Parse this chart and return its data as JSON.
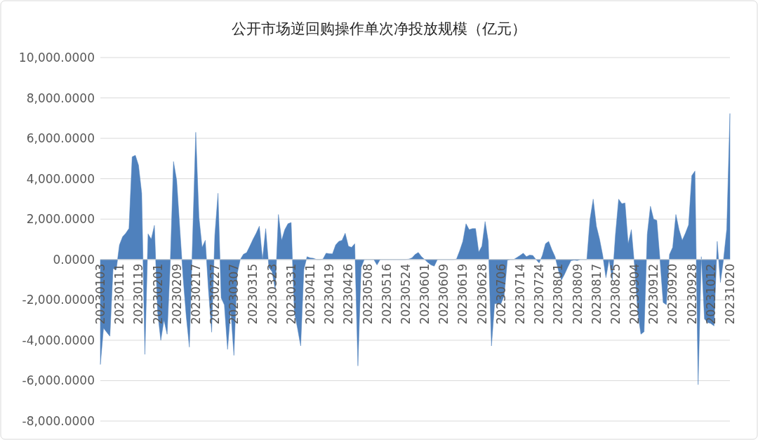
{
  "chart_data": {
    "type": "area",
    "title": "公开市场逆回购操作单次净投放规模（亿元）",
    "color": "#4f81bd",
    "grid": "y",
    "ylim": [
      -8000,
      10000
    ],
    "yticks": [
      {
        "value": -8000,
        "label": "-8,000.0000"
      },
      {
        "value": -6000,
        "label": "-6,000.0000"
      },
      {
        "value": -4000,
        "label": "-4,000.0000"
      },
      {
        "value": -2000,
        "label": "-2,000.0000"
      },
      {
        "value": 0,
        "label": "0.0000"
      },
      {
        "value": 2000,
        "label": "2,000.0000"
      },
      {
        "value": 4000,
        "label": "4,000.0000"
      },
      {
        "value": 6000,
        "label": "6,000.0000"
      },
      {
        "value": 8000,
        "label": "8,000.0000"
      },
      {
        "value": 10000,
        "label": "10,000.0000"
      }
    ],
    "categories": [
      "20230103",
      null,
      null,
      null,
      null,
      null,
      "20230111",
      null,
      null,
      null,
      null,
      null,
      "20230119",
      null,
      null,
      null,
      null,
      null,
      "20230201",
      null,
      null,
      null,
      null,
      null,
      "20230209",
      null,
      null,
      null,
      null,
      null,
      "20230217",
      null,
      null,
      null,
      null,
      null,
      "20230227",
      null,
      null,
      null,
      null,
      null,
      "20230307",
      null,
      null,
      null,
      null,
      null,
      "20230315",
      null,
      null,
      null,
      null,
      null,
      "20230323",
      null,
      null,
      null,
      null,
      null,
      "20230331",
      null,
      null,
      null,
      null,
      null,
      "20230411",
      null,
      null,
      null,
      null,
      null,
      "20230419",
      null,
      null,
      null,
      null,
      null,
      "20230426",
      null,
      null,
      null,
      null,
      null,
      "20230508",
      null,
      null,
      null,
      null,
      null,
      "20230516",
      null,
      null,
      null,
      null,
      null,
      "20230524",
      null,
      null,
      null,
      null,
      null,
      "20230601",
      null,
      null,
      null,
      null,
      null,
      "20230609",
      null,
      null,
      null,
      null,
      null,
      "20230619",
      null,
      null,
      null,
      null,
      null,
      "20230628",
      null,
      null,
      null,
      null,
      null,
      "20230706",
      null,
      null,
      null,
      null,
      null,
      "20230714",
      null,
      null,
      null,
      null,
      null,
      "20230724",
      null,
      null,
      null,
      null,
      null,
      "20230801",
      null,
      null,
      null,
      null,
      null,
      "20230809",
      null,
      null,
      null,
      null,
      null,
      "20230817",
      null,
      null,
      null,
      null,
      null,
      "20230825",
      null,
      null,
      null,
      null,
      null,
      "20230904",
      null,
      null,
      null,
      null,
      null,
      "20230912",
      null,
      null,
      null,
      null,
      null,
      "20230920",
      null,
      null,
      null,
      null,
      null,
      "20230928",
      null,
      null,
      null,
      null,
      null,
      "20231012",
      null,
      null,
      null,
      null,
      null,
      "20231020"
    ],
    "values": [
      -5200,
      -3400,
      -3600,
      -3800,
      -450,
      -500,
      720,
      1130,
      1300,
      1540,
      5080,
      5160,
      4670,
      3280,
      -4700,
      1270,
      1010,
      1690,
      -2600,
      -4000,
      -3000,
      -3700,
      -100,
      4850,
      3920,
      1500,
      -850,
      -2800,
      -4340,
      1000,
      6300,
      2100,
      600,
      950,
      -1500,
      -3600,
      1200,
      3280,
      -1900,
      -2250,
      -4450,
      -2500,
      -4750,
      -730,
      0,
      260,
      340,
      660,
      1000,
      1300,
      1650,
      0,
      1530,
      -400,
      -600,
      -1500,
      2230,
      950,
      1480,
      1770,
      1830,
      -2600,
      -3400,
      -4280,
      -500,
      140,
      80,
      60,
      0,
      0,
      20,
      310,
      290,
      280,
      720,
      900,
      950,
      1300,
      660,
      600,
      780,
      -5270,
      -400,
      0,
      0,
      0,
      0,
      -270,
      0,
      0,
      0,
      0,
      0,
      0,
      0,
      0,
      0,
      20,
      80,
      250,
      350,
      140,
      0,
      -150,
      -270,
      -330,
      0,
      0,
      0,
      0,
      0,
      0,
      20,
      430,
      900,
      1770,
      1480,
      1530,
      1530,
      370,
      660,
      1880,
      900,
      -4280,
      -2190,
      -2190,
      -2190,
      -1780,
      -30,
      0,
      0,
      100,
      200,
      310,
      140,
      220,
      200,
      0,
      -170,
      200,
      780,
      900,
      490,
      140,
      -500,
      -1020,
      -730,
      -380,
      -60,
      -30,
      -50,
      0,
      0,
      0,
      2000,
      2990,
      1650,
      1010,
      200,
      -900,
      0,
      -1020,
      1240,
      2990,
      2760,
      2800,
      780,
      1480,
      -300,
      -2600,
      -3700,
      -3580,
      1240,
      2640,
      2000,
      1940,
      0,
      -2130,
      -2240,
      250,
      600,
      2230,
      1480,
      950,
      1300,
      1710,
      4150,
      4380,
      -6200,
      140,
      -2940,
      -3120,
      -3170,
      -3290,
      900,
      -1140,
      20,
      1500,
      7230
    ]
  }
}
